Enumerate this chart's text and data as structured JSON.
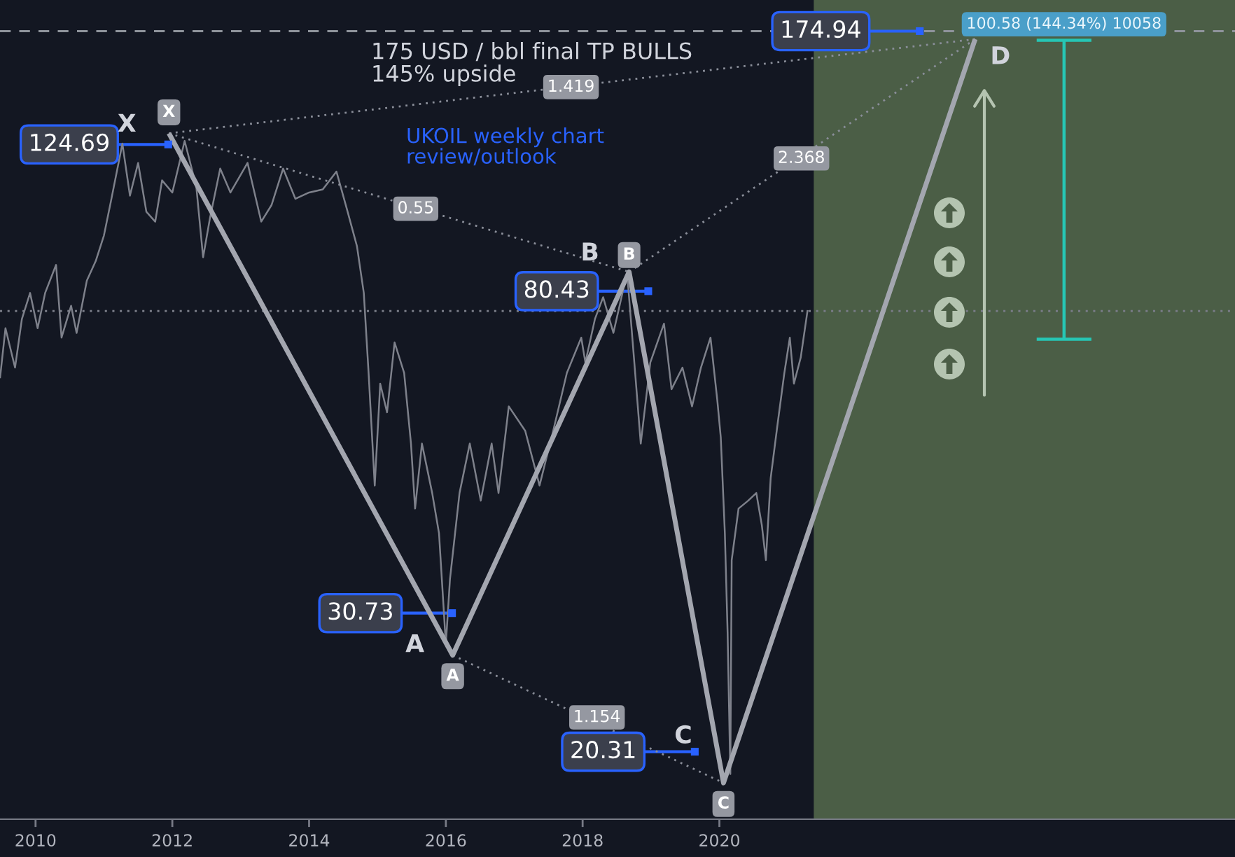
{
  "chart_data": {
    "type": "line",
    "log": true,
    "xlim": [
      2009.48,
      2027.54
    ],
    "ylim": [
      16.6,
      192
    ],
    "xticks": [
      2010,
      2012,
      2014,
      2016,
      2018,
      2020
    ],
    "tick_labels": "x",
    "bands": [
      {
        "axis": "x",
        "from": 2021.38,
        "to": 2027.54,
        "color": "#4b5e46"
      }
    ],
    "ref_lines": [
      {
        "axis": "y",
        "value": 174.94,
        "color": "#8f949c",
        "line_style": "dashed"
      },
      {
        "axis": "y",
        "value": 75.8,
        "color": "#787b86",
        "line_style": "dotted"
      }
    ],
    "series": [
      {
        "color": "#7e818b",
        "x": [
          2009.48,
          2009.56,
          2009.7,
          2009.8,
          2009.92,
          2010.03,
          2010.14,
          2010.3,
          2010.38,
          2010.52,
          2010.6,
          2010.75,
          2010.88,
          2011.0,
          2011.1,
          2011.27,
          2011.38,
          2011.5,
          2011.62,
          2011.75,
          2011.85,
          2012.0,
          2012.18,
          2012.35,
          2012.45,
          2012.55,
          2012.7,
          2012.85,
          2013.1,
          2013.3,
          2013.45,
          2013.62,
          2013.8,
          2014.0,
          2014.2,
          2014.4,
          2014.55,
          2014.7,
          2014.8,
          2014.87,
          2014.96,
          2015.04,
          2015.14,
          2015.25,
          2015.39,
          2015.49,
          2015.55,
          2015.65,
          2015.8,
          2015.9,
          2016.0,
          2016.06,
          2016.2,
          2016.35,
          2016.51,
          2016.67,
          2016.77,
          2016.92,
          2017.16,
          2017.37,
          2017.57,
          2017.77,
          2017.98,
          2018.04,
          2018.18,
          2018.3,
          2018.45,
          2018.65,
          2018.75,
          2018.85,
          2018.99,
          2019.19,
          2019.3,
          2019.46,
          2019.6,
          2019.73,
          2019.87,
          2019.97,
          2020.02,
          2020.08,
          2020.12,
          2020.16,
          2020.18,
          2020.28,
          2020.42,
          2020.54,
          2020.62,
          2020.68,
          2020.75,
          2020.85,
          2020.95,
          2021.03,
          2021.09,
          2021.19,
          2021.29
        ],
        "values": [
          62,
          72,
          64,
          74,
          80,
          72,
          80,
          87,
          70,
          77,
          71,
          83,
          88,
          95,
          105,
          125,
          107,
          118,
          102,
          99,
          112,
          108,
          126,
          110,
          89,
          100,
          116,
          108,
          118,
          99,
          104,
          116,
          106,
          108,
          109,
          115,
          103,
          92,
          80,
          63,
          45,
          61,
          56,
          69,
          63,
          51,
          42,
          51,
          44,
          39,
          28,
          34,
          44,
          51,
          43,
          51,
          44,
          57,
          53,
          45,
          53,
          63,
          70,
          65,
          74,
          79,
          71,
          85,
          66,
          51,
          65,
          73,
          60,
          64,
          57,
          64,
          70,
          58,
          52,
          39,
          29,
          19,
          36,
          42,
          43,
          44,
          40,
          36,
          46,
          54,
          63,
          70,
          61,
          66,
          76
        ]
      },
      {
        "color": "#a3a6af",
        "x": [
          2011.95,
          2016.1,
          2018.68,
          2020.06,
          2023.74
        ],
        "values": [
          128.9,
          27.1,
          85.2,
          18.5,
          170.8
        ]
      },
      {
        "color": "#8a8e99",
        "line_style": "dotted",
        "x": [
          2011.95,
          2018.68
        ],
        "values": [
          128.9,
          85.2
        ]
      },
      {
        "color": "#8a8e99",
        "line_style": "dotted",
        "x": [
          2016.1,
          2020.06
        ],
        "values": [
          27.1,
          18.5
        ]
      },
      {
        "color": "#8a8e99",
        "line_style": "dotted",
        "x": [
          2018.68,
          2023.74
        ],
        "values": [
          85.2,
          170.8
        ]
      },
      {
        "color": "#8a8e99",
        "line_style": "dotted",
        "x": [
          2011.95,
          2023.74
        ],
        "values": [
          128.9,
          170.8
        ]
      },
      {
        "color": "#26c6b4",
        "x": [
          2025.04,
          2025.04
        ],
        "values": [
          69.68,
          170.26
        ]
      },
      {
        "color": "#26c6b4",
        "x": [
          2024.64,
          2025.44
        ],
        "values": [
          69.68,
          69.68
        ]
      },
      {
        "color": "#26c6b4",
        "x": [
          2024.64,
          2025.44
        ],
        "values": [
          170.26,
          170.26
        ]
      },
      {
        "type": "scatter",
        "color": "#2962ff",
        "marker": "square",
        "x": [
          2011.94,
          2018.96,
          2016.09,
          2019.64,
          2022.93
        ],
        "values": [
          124.69,
          80.43,
          30.73,
          20.31,
          174.94
        ],
        "value_labels": [
          "124.69",
          "80.43",
          "30.73",
          "20.31",
          "174.94"
        ]
      }
    ],
    "annotations": [
      "175 USD / bbl final TP BULLS\n145% upside",
      "UKOIL weekly chart\nreview/outlook",
      {
        "text": "0.55",
        "x": 2015.56,
        "y": 102.9
      },
      {
        "text": "1.154",
        "x": 2018.21,
        "y": 22.5
      },
      {
        "text": "2.368",
        "x": 2021.2,
        "y": 119.6
      },
      {
        "text": "1.419",
        "x": 2017.83,
        "y": 148.0
      },
      {
        "text": "X",
        "x": 2011.95,
        "y": 128.9
      },
      {
        "text": "A",
        "x": 2016.1,
        "y": 27.1
      },
      {
        "text": "B",
        "x": 2018.68,
        "y": 85.2
      },
      {
        "text": "C",
        "x": 2020.06,
        "y": 18.5
      },
      {
        "text": "X",
        "x": 2011.95,
        "y": 128.9
      },
      {
        "text": "A",
        "x": 2016.1,
        "y": 27.1
      },
      {
        "text": "B",
        "x": 2018.68,
        "y": 85.2
      },
      "C",
      {
        "text": "D",
        "x": 2023.74,
        "y": 170.8
      },
      {
        "text": "100.58 (144.34%) 10058",
        "x": 2025.04,
        "y": 170.26
      }
    ]
  }
}
